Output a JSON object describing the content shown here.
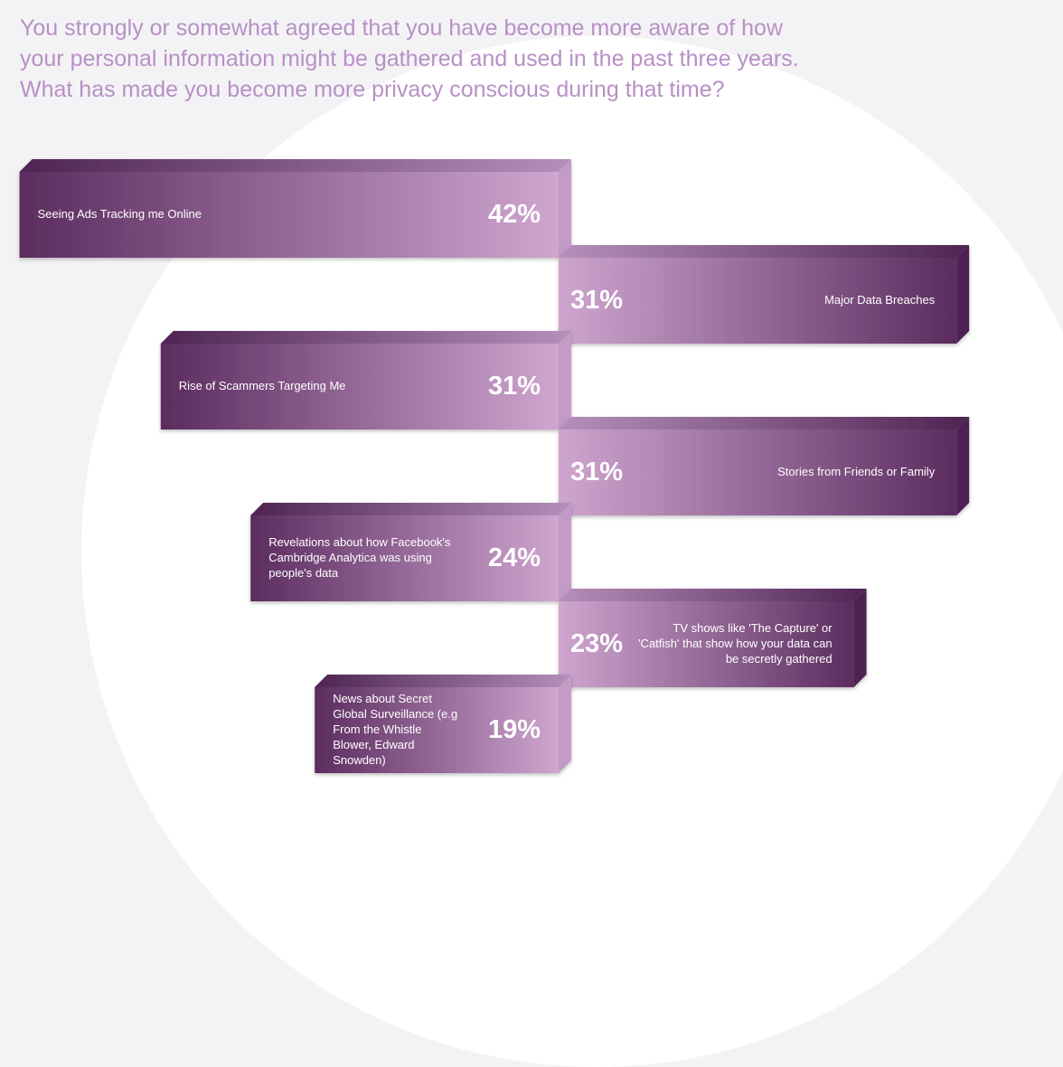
{
  "title_lines": [
    "You strongly or somewhat agreed that you have become more aware of how",
    "your personal information might be gathered and used in the past three years.",
    "What has made you become more privacy conscious during that time?"
  ],
  "colors": {
    "dark": "#5b2c5f",
    "light": "#cfa6d0",
    "title": "#b98fc6"
  },
  "chart_data": {
    "type": "bar",
    "orientation": "horizontal-staggered",
    "title": "What has made you become more privacy conscious during that time?",
    "categories": [
      "Seeing Ads Tracking me Online",
      "Major Data Breaches",
      "Rise of Scammers Targeting Me",
      "Stories from Friends or Family",
      "Revelations about how Facebook's Cambridge Analytica was using people's data",
      "TV shows like 'The Capture' or 'Catfish' that show how your data can be secretly gathered",
      "News about Secret Global Surveillance (e.g From the Whistle Blower, Edward Snowden)"
    ],
    "values": [
      42,
      31,
      31,
      31,
      24,
      23,
      19
    ],
    "value_labels": [
      "42%",
      "31%",
      "31%",
      "31%",
      "24%",
      "23%",
      "19%"
    ],
    "sides": [
      "left",
      "right",
      "left",
      "right",
      "left",
      "right",
      "left"
    ],
    "unit": "%"
  }
}
